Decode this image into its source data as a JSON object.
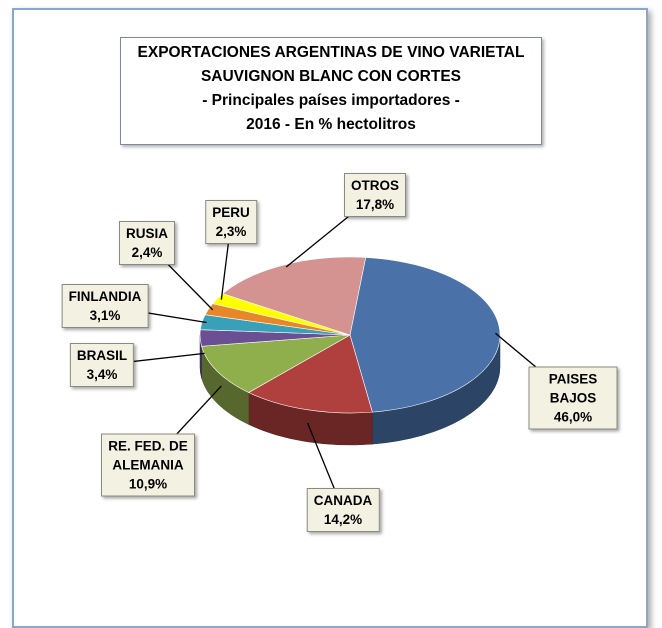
{
  "chart_data": {
    "type": "pie",
    "title": "EXPORTACIONES ARGENTINAS DE VINO VARIETAL SAUVIGNON BLANC CON CORTES",
    "subtitle": "- Principales países importadores -",
    "unit_note": "2016 - En % hectolitros",
    "categories": [
      "PAISES BAJOS",
      "CANADA",
      "RE. FED. DE ALEMANIA",
      "BRASIL",
      "FINLANDIA",
      "RUSIA",
      "PERU",
      "OTROS"
    ],
    "values": [
      46.0,
      14.2,
      10.9,
      3.4,
      3.1,
      2.4,
      2.3,
      17.8
    ],
    "value_labels": [
      "46,0%",
      "14,2%",
      "10,9%",
      "3,4%",
      "3,1%",
      "2,4%",
      "2,3%",
      "17,8%"
    ],
    "colors": [
      "#4a72a8",
      "#b0403d",
      "#8fae4c",
      "#6b4f93",
      "#3aa0b8",
      "#e8872a",
      "#ffff00",
      "#d49290"
    ]
  }
}
